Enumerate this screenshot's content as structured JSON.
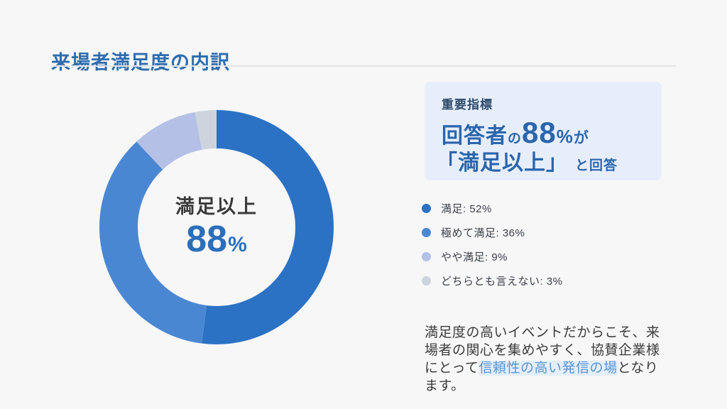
{
  "slide": {
    "title": "来場者満足度の内訳"
  },
  "chart_data": {
    "type": "pie",
    "subtype": "donut",
    "title": "来場者満足度の内訳",
    "categories": [
      "満足",
      "極めて満足",
      "やや満足",
      "どちらとも言えない"
    ],
    "values": [
      52,
      36,
      9,
      3
    ],
    "unit": "%",
    "colors": [
      "#2b72c4",
      "#4a87d3",
      "#b4c0e6",
      "#ced4de"
    ],
    "start_angle": "top",
    "direction": "clockwise",
    "center_label": "満足以上",
    "center_value": "88",
    "center_unit": "%",
    "legend_position": "right"
  },
  "highlight_box": {
    "background": "#e7eefb",
    "kicker": "重要指標",
    "line1": {
      "p1": "回答者",
      "p2": "の",
      "p3": "88",
      "p4": "%",
      "p5": "が"
    },
    "line2": {
      "p1": "「満足以上」",
      "p2": "と回答"
    }
  },
  "legend": {
    "items": [
      {
        "text": "満足: 52%"
      },
      {
        "text": "極めて満足: 36%"
      },
      {
        "text": "やや満足: 9%"
      },
      {
        "text": "どちらとも言えない: 3%"
      }
    ]
  },
  "paragraph": {
    "before": "満足度の高いイベントだからこそ、来場者の関心を集めやすく、協賛企業様にとって",
    "highlight": "信頼性の高い発信の場",
    "after": "となります。"
  },
  "colors": {
    "background": "#f7f7f8",
    "title_blue": "#2e6cae",
    "number_blue": "#2b6fba",
    "box_text_blue": "#2a66ad",
    "kicker_navy": "#2d4a6b",
    "paragraph_highlight_blue": "#5795d6",
    "divider": "#e3e4e7"
  }
}
